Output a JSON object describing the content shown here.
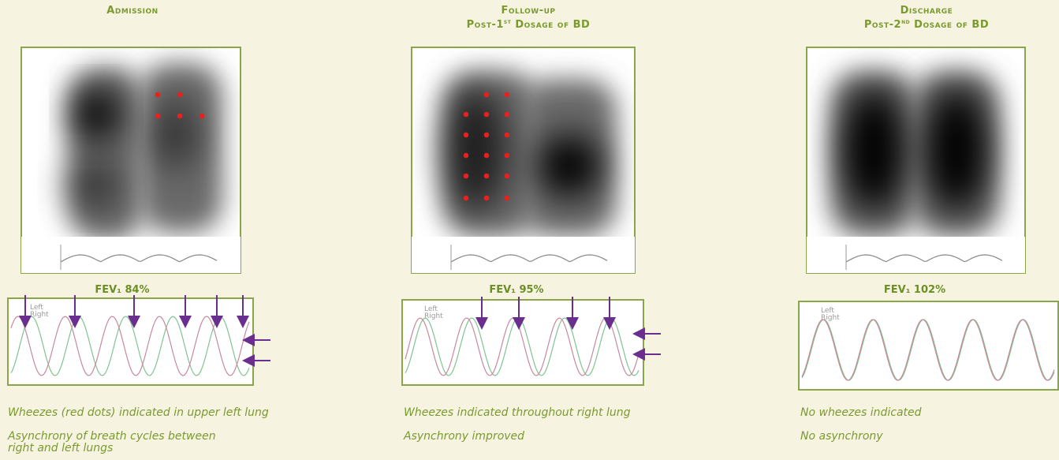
{
  "panels": [
    {
      "title": [
        [
          {
            "text": "Admission"
          }
        ]
      ],
      "fev": "FEV₁ 84%",
      "legend": [
        "Left",
        "Right"
      ],
      "captions": [
        [
          "Wheezes (red dots) indicated in upper left lung"
        ],
        [
          "Asynchrony of breath cycles between",
          "right and left lungs"
        ]
      ]
    },
    {
      "title": [
        [
          {
            "text": "Follow-up"
          }
        ],
        [
          {
            "text": "Post-1"
          },
          {
            "sup": "st"
          },
          {
            "text": " Dosage of BD"
          }
        ]
      ],
      "fev": "FEV₁ 95%",
      "legend": [
        "Left",
        "Right"
      ],
      "captions": [
        [
          "Wheezes indicated throughout right lung"
        ],
        [
          "Asynchrony improved"
        ]
      ]
    },
    {
      "title": [
        [
          {
            "text": "Discharge"
          }
        ],
        [
          {
            "text": "Post-2"
          },
          {
            "sup": "nd"
          },
          {
            "text": " Dosage of BD"
          }
        ]
      ],
      "fev": "FEV₁ 102%",
      "legend": [
        "Left",
        "Right"
      ],
      "captions": [
        [
          "No wheezes indicated"
        ],
        [
          "No asynchrony"
        ]
      ]
    }
  ]
}
